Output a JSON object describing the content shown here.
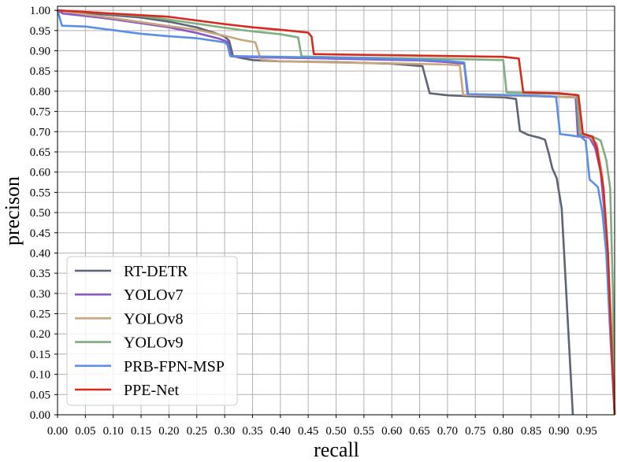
{
  "chart_data": {
    "type": "line",
    "xlabel": "recall",
    "ylabel": "precison",
    "xlim": [
      0,
      1.0
    ],
    "ylim": [
      0,
      1.01
    ],
    "xticks": [
      "0.00",
      "0.05",
      "0.10",
      "0.15",
      "0.20",
      "0.25",
      "0.30",
      "0.35",
      "0.40",
      "0.45",
      "0.50",
      "0.55",
      "0.60",
      "0.65",
      "0.70",
      "0.75",
      "0.80",
      "0.85",
      "0.90",
      "0.95"
    ],
    "yticks": [
      "0.00",
      "0.05",
      "0.10",
      "0.15",
      "0.20",
      "0.25",
      "0.30",
      "0.35",
      "0.40",
      "0.45",
      "0.50",
      "0.55",
      "0.60",
      "0.65",
      "0.70",
      "0.75",
      "0.80",
      "0.85",
      "0.90",
      "0.95",
      "1.00"
    ],
    "grid": true,
    "legend": "lower-left",
    "series": [
      {
        "name": "RT-DETR",
        "color": "#5d6478",
        "x": [
          0,
          0.05,
          0.1,
          0.15,
          0.2,
          0.25,
          0.28,
          0.3,
          0.308,
          0.315,
          0.33,
          0.35,
          0.4,
          0.5,
          0.6,
          0.655,
          0.668,
          0.7,
          0.75,
          0.8,
          0.823,
          0.83,
          0.845,
          0.865,
          0.875,
          0.882,
          0.888,
          0.896,
          0.905,
          0.925
        ],
        "y": [
          1.0,
          0.993,
          0.988,
          0.982,
          0.972,
          0.958,
          0.945,
          0.935,
          0.925,
          0.887,
          0.882,
          0.877,
          0.874,
          0.872,
          0.868,
          0.862,
          0.795,
          0.79,
          0.787,
          0.785,
          0.781,
          0.702,
          0.692,
          0.685,
          0.68,
          0.645,
          0.61,
          0.585,
          0.51,
          0.0
        ]
      },
      {
        "name": "YOLOv7",
        "color": "#8b57c7",
        "x": [
          0,
          0.01,
          0.05,
          0.1,
          0.15,
          0.2,
          0.25,
          0.29,
          0.305,
          0.312,
          0.35,
          0.45,
          0.55,
          0.65,
          0.7,
          0.73,
          0.736,
          0.8,
          0.88,
          0.93,
          0.934,
          0.955,
          0.965,
          0.975,
          0.985,
          0.993,
          1.0
        ],
        "y": [
          1.0,
          0.992,
          0.986,
          0.978,
          0.968,
          0.958,
          0.944,
          0.93,
          0.922,
          0.886,
          0.884,
          0.882,
          0.879,
          0.876,
          0.872,
          0.868,
          0.792,
          0.79,
          0.787,
          0.785,
          0.69,
          0.685,
          0.66,
          0.6,
          0.45,
          0.2,
          0.0
        ]
      },
      {
        "name": "YOLOv8",
        "color": "#c9a57e",
        "x": [
          0,
          0.05,
          0.1,
          0.15,
          0.2,
          0.25,
          0.3,
          0.33,
          0.355,
          0.365,
          0.4,
          0.5,
          0.6,
          0.7,
          0.722,
          0.728,
          0.8,
          0.85,
          0.9,
          0.935,
          0.94,
          0.955,
          0.968,
          0.978,
          0.988,
          0.996,
          1.0
        ],
        "y": [
          1.0,
          0.99,
          0.981,
          0.971,
          0.961,
          0.952,
          0.937,
          0.927,
          0.921,
          0.878,
          0.874,
          0.871,
          0.869,
          0.866,
          0.864,
          0.791,
          0.789,
          0.788,
          0.786,
          0.784,
          0.693,
          0.688,
          0.67,
          0.59,
          0.4,
          0.15,
          0.0
        ]
      },
      {
        "name": "YOLOv9",
        "color": "#7fae7f",
        "x": [
          0,
          0.05,
          0.1,
          0.15,
          0.2,
          0.25,
          0.3,
          0.35,
          0.4,
          0.432,
          0.438,
          0.5,
          0.6,
          0.7,
          0.8,
          0.806,
          0.85,
          0.9,
          0.932,
          0.937,
          0.96,
          0.975,
          0.985,
          0.992,
          0.997,
          1.0
        ],
        "y": [
          1.0,
          0.996,
          0.991,
          0.986,
          0.977,
          0.967,
          0.957,
          0.948,
          0.941,
          0.933,
          0.886,
          0.884,
          0.882,
          0.88,
          0.877,
          0.797,
          0.795,
          0.793,
          0.791,
          0.695,
          0.688,
          0.678,
          0.63,
          0.56,
          0.3,
          0.0
        ]
      },
      {
        "name": "PRB-FPN-MSP",
        "color": "#5b8fe3",
        "x": [
          0,
          0.008,
          0.05,
          0.1,
          0.15,
          0.2,
          0.25,
          0.3,
          0.305,
          0.31,
          0.35,
          0.45,
          0.55,
          0.65,
          0.7,
          0.73,
          0.737,
          0.8,
          0.86,
          0.895,
          0.902,
          0.92,
          0.94,
          0.948,
          0.955,
          0.97,
          0.978,
          0.985,
          0.992,
          1.0
        ],
        "y": [
          1.0,
          0.962,
          0.96,
          0.951,
          0.942,
          0.936,
          0.931,
          0.921,
          0.915,
          0.887,
          0.886,
          0.884,
          0.882,
          0.878,
          0.875,
          0.871,
          0.793,
          0.791,
          0.789,
          0.786,
          0.694,
          0.691,
          0.687,
          0.677,
          0.582,
          0.563,
          0.5,
          0.4,
          0.2,
          0.0
        ]
      },
      {
        "name": "PPE-Net",
        "color": "#d62a1f",
        "x": [
          0,
          0.05,
          0.1,
          0.15,
          0.2,
          0.25,
          0.3,
          0.35,
          0.4,
          0.45,
          0.456,
          0.46,
          0.5,
          0.6,
          0.7,
          0.8,
          0.828,
          0.836,
          0.9,
          0.935,
          0.943,
          0.96,
          0.968,
          0.975,
          0.98,
          0.988,
          0.995,
          1.0
        ],
        "y": [
          1.0,
          0.996,
          0.992,
          0.988,
          0.984,
          0.975,
          0.966,
          0.958,
          0.952,
          0.945,
          0.935,
          0.892,
          0.891,
          0.889,
          0.887,
          0.885,
          0.881,
          0.797,
          0.795,
          0.79,
          0.695,
          0.688,
          0.66,
          0.6,
          0.56,
          0.4,
          0.15,
          0.0
        ]
      }
    ]
  }
}
